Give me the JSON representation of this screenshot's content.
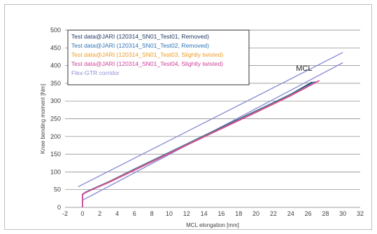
{
  "chart_data": {
    "type": "line",
    "title": "",
    "xlabel": "MCL elongation [mm]",
    "ylabel": "Knee bending moment [Nm]",
    "xlim": [
      -2,
      32
    ],
    "ylim": [
      0,
      500
    ],
    "x_ticks": [
      -2,
      0,
      2,
      4,
      6,
      8,
      10,
      12,
      14,
      16,
      18,
      20,
      22,
      24,
      26,
      28,
      30,
      32
    ],
    "y_ticks": [
      0,
      50,
      100,
      150,
      200,
      250,
      300,
      350,
      400,
      450,
      500
    ],
    "grid": "horizontal",
    "legend_position": "top-left",
    "annotation": "MCL",
    "series": [
      {
        "name": "Test data@JARI (120314_SN01_Test01, Removed)",
        "color": "#1f3864",
        "x": [
          0,
          0,
          0.3,
          1,
          3,
          6,
          10,
          15,
          20,
          24,
          26.5
        ],
        "y": [
          0,
          35,
          42,
          50,
          72,
          108,
          155,
          214,
          272,
          319,
          354
        ]
      },
      {
        "name": "Test data@JARI (120314_SN01_Test02, Removed)",
        "color": "#2e75b6",
        "x": [
          0,
          0,
          0.3,
          1,
          3,
          6,
          10,
          15,
          20,
          24,
          26.8
        ],
        "y": [
          0,
          36,
          42,
          50,
          72,
          108,
          155,
          213,
          271,
          318,
          355
        ]
      },
      {
        "name": "Test data@JARI (120314_SN01_Test03, Slightly twisted)",
        "color": "#ed9c28",
        "x": [
          0,
          0,
          0.3,
          1,
          3,
          6,
          10,
          15,
          20,
          24,
          27.1
        ],
        "y": [
          0,
          37,
          41,
          49,
          71,
          106,
          153,
          211,
          269,
          316,
          356
        ]
      },
      {
        "name": "Test data@JARI (120314_SN01_Test04, Slightly twisted)",
        "color": "#d0409a",
        "x": [
          0,
          0,
          0.3,
          1,
          3,
          6,
          10,
          15,
          20,
          24,
          27.3
        ],
        "y": [
          0,
          37,
          41,
          49,
          70,
          105,
          152,
          210,
          268,
          315,
          358
        ]
      }
    ],
    "corridor": {
      "name": "Flex-GTR corridor",
      "color": "#8e8fd6",
      "upper": {
        "x": [
          -0.5,
          30
        ],
        "y": [
          58,
          437
        ]
      },
      "lower": {
        "x": [
          0,
          30
        ],
        "y": [
          20,
          408
        ]
      }
    }
  }
}
